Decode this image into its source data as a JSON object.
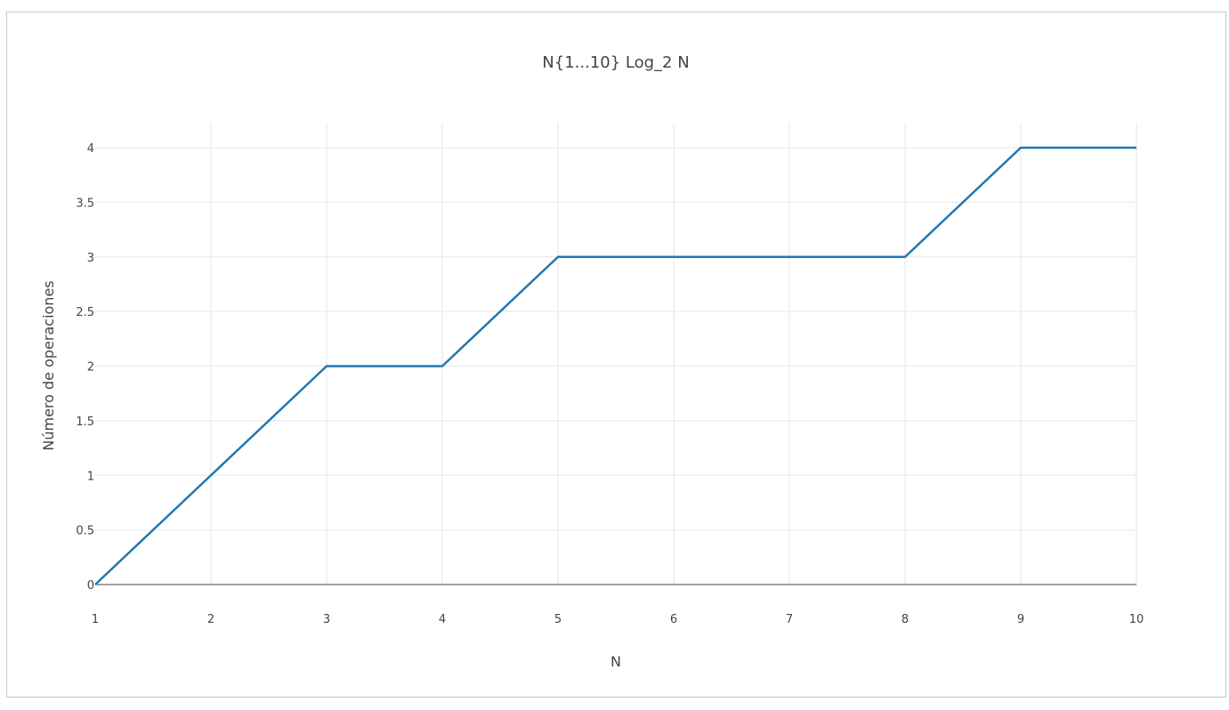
{
  "chart_data": {
    "type": "line",
    "title": "N{1...10} Log_2 N",
    "xlabel": "N",
    "ylabel": "Número de operaciones",
    "x": [
      1,
      2,
      3,
      4,
      5,
      6,
      7,
      8,
      9,
      10
    ],
    "series": [
      {
        "values": [
          0,
          1,
          2,
          2,
          3,
          3,
          3,
          3,
          4,
          4
        ],
        "color": "#1f77b4"
      }
    ],
    "xlim": [
      1,
      10
    ],
    "ylim": [
      0,
      4
    ],
    "x_ticks": [
      "1",
      "2",
      "3",
      "4",
      "5",
      "6",
      "7",
      "8",
      "9",
      "10"
    ],
    "y_ticks": [
      "0",
      "0.5",
      "1",
      "1.5",
      "2",
      "2.5",
      "3",
      "3.5",
      "4"
    ],
    "grid": true,
    "legend": false
  }
}
